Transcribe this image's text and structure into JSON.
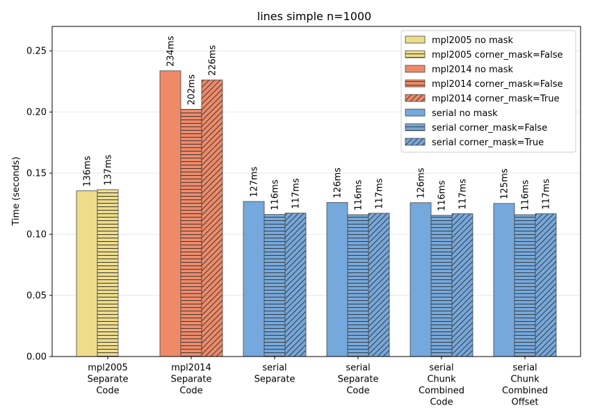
{
  "chart_data": {
    "type": "bar",
    "title": "lines simple n=1000",
    "ylabel": "Time (seconds)",
    "xlabel": "",
    "ylim": [
      0,
      0.27
    ],
    "yticks": [
      0.0,
      0.05,
      0.1,
      0.15,
      0.2,
      0.25
    ],
    "ytick_labels": [
      "0.00",
      "0.05",
      "0.10",
      "0.15",
      "0.20",
      "0.25"
    ],
    "grid": "horizontal",
    "legend_position": "top-right",
    "groups": [
      {
        "label": [
          "mpl2005",
          "Separate",
          "Code"
        ],
        "bars": [
          {
            "series": "mpl2005 no mask",
            "value": 0.1355,
            "label": "136ms"
          },
          {
            "series": "mpl2005 corner_mask=False",
            "value": 0.1365,
            "label": "137ms"
          }
        ]
      },
      {
        "label": [
          "mpl2014",
          "Separate",
          "Code"
        ],
        "bars": [
          {
            "series": "mpl2014 no mask",
            "value": 0.2337,
            "label": "234ms"
          },
          {
            "series": "mpl2014 corner_mask=False",
            "value": 0.2022,
            "label": "202ms"
          },
          {
            "series": "mpl2014 corner_mask=True",
            "value": 0.2262,
            "label": "226ms"
          }
        ]
      },
      {
        "label": [
          "serial",
          "Separate"
        ],
        "bars": [
          {
            "series": "serial no mask",
            "value": 0.1268,
            "label": "127ms"
          },
          {
            "series": "serial corner_mask=False",
            "value": 0.1162,
            "label": "116ms"
          },
          {
            "series": "serial corner_mask=True",
            "value": 0.1173,
            "label": "117ms"
          }
        ]
      },
      {
        "label": [
          "serial",
          "Separate",
          "Code"
        ],
        "bars": [
          {
            "series": "serial no mask",
            "value": 0.126,
            "label": "126ms"
          },
          {
            "series": "serial corner_mask=False",
            "value": 0.116,
            "label": "116ms"
          },
          {
            "series": "serial corner_mask=True",
            "value": 0.1172,
            "label": "117ms"
          }
        ]
      },
      {
        "label": [
          "serial",
          "Chunk",
          "Combined",
          "Code"
        ],
        "bars": [
          {
            "series": "serial no mask",
            "value": 0.1258,
            "label": "126ms"
          },
          {
            "series": "serial corner_mask=False",
            "value": 0.1155,
            "label": "116ms"
          },
          {
            "series": "serial corner_mask=True",
            "value": 0.1168,
            "label": "117ms"
          }
        ]
      },
      {
        "label": [
          "serial",
          "Chunk",
          "Combined",
          "Offset"
        ],
        "bars": [
          {
            "series": "serial no mask",
            "value": 0.1252,
            "label": "125ms"
          },
          {
            "series": "serial corner_mask=False",
            "value": 0.116,
            "label": "116ms"
          },
          {
            "series": "serial corner_mask=True",
            "value": 0.1168,
            "label": "117ms"
          }
        ]
      }
    ],
    "series": [
      {
        "name": "mpl2005 no mask",
        "color": "#eedc8a",
        "hatch": "none"
      },
      {
        "name": "mpl2005 corner_mask=False",
        "color": "#eedc8a",
        "hatch": "horizontal"
      },
      {
        "name": "mpl2014 no mask",
        "color": "#ef8a68",
        "hatch": "none"
      },
      {
        "name": "mpl2014 corner_mask=False",
        "color": "#ef8a68",
        "hatch": "horizontal"
      },
      {
        "name": "mpl2014 corner_mask=True",
        "color": "#ef8a68",
        "hatch": "diagonal"
      },
      {
        "name": "serial no mask",
        "color": "#75a8dc",
        "hatch": "none"
      },
      {
        "name": "serial corner_mask=False",
        "color": "#75a8dc",
        "hatch": "horizontal"
      },
      {
        "name": "serial corner_mask=True",
        "color": "#75a8dc",
        "hatch": "diagonal"
      }
    ]
  }
}
